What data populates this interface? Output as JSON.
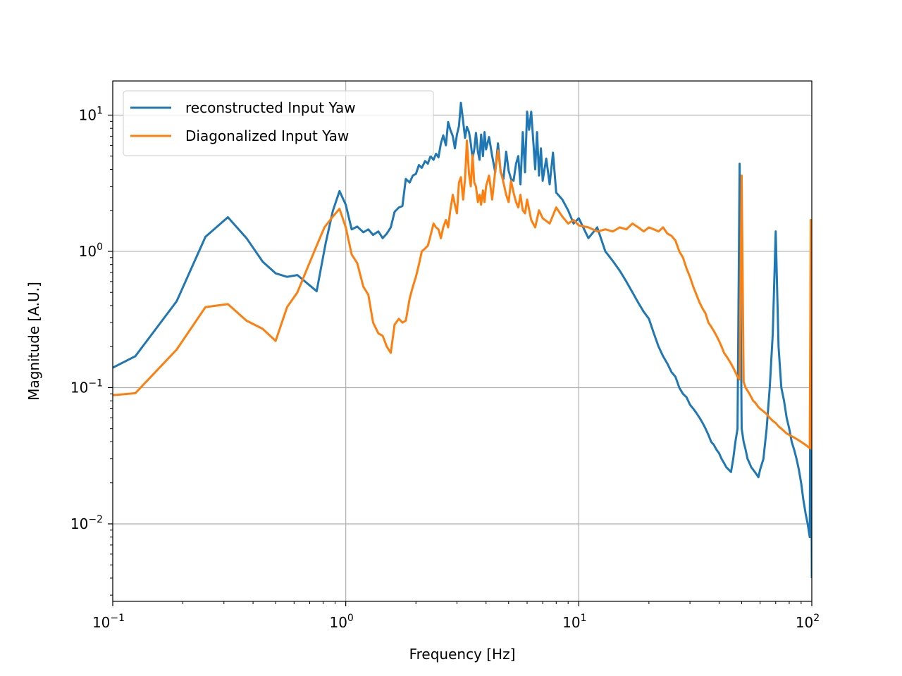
{
  "chart_data": {
    "type": "line",
    "xscale": "log",
    "yscale": "log",
    "xlim": [
      0.1,
      100
    ],
    "ylim": [
      0.0027,
      17.8
    ],
    "xlabel": "Frequency [Hz]",
    "ylabel": "Magnitude [A.U.]",
    "grid": true,
    "legend_position": "top-left",
    "x_ticks": [
      {
        "value": 0.1,
        "base": "10",
        "exp": "−1"
      },
      {
        "value": 1,
        "base": "10",
        "exp": "0"
      },
      {
        "value": 10,
        "base": "10",
        "exp": "1"
      },
      {
        "value": 100,
        "base": "10",
        "exp": "2"
      }
    ],
    "y_ticks": [
      {
        "value": 0.01,
        "base": "10",
        "exp": "−2"
      },
      {
        "value": 0.1,
        "base": "10",
        "exp": "−1"
      },
      {
        "value": 1,
        "base": "10",
        "exp": "0"
      },
      {
        "value": 10,
        "base": "10",
        "exp": "1"
      }
    ],
    "series": [
      {
        "name": "reconstructed Input Yaw",
        "color": "#1f77b4",
        "x": [
          0.1,
          0.125,
          0.188,
          0.25,
          0.312,
          0.375,
          0.44,
          0.5,
          0.56,
          0.62,
          0.75,
          0.82,
          0.88,
          0.94,
          1.0,
          1.06,
          1.12,
          1.19,
          1.25,
          1.31,
          1.38,
          1.44,
          1.5,
          1.56,
          1.62,
          1.69,
          1.75,
          1.81,
          1.88,
          1.94,
          2.0,
          2.06,
          2.12,
          2.19,
          2.25,
          2.31,
          2.38,
          2.44,
          2.5,
          2.56,
          2.62,
          2.69,
          2.75,
          2.81,
          2.88,
          2.94,
          3.0,
          3.06,
          3.12,
          3.19,
          3.25,
          3.31,
          3.38,
          3.44,
          3.5,
          3.56,
          3.62,
          3.69,
          3.75,
          3.81,
          3.88,
          3.94,
          4.0,
          4.12,
          4.25,
          4.38,
          4.5,
          4.62,
          4.75,
          4.88,
          5.0,
          5.12,
          5.25,
          5.38,
          5.5,
          5.62,
          5.75,
          5.88,
          6.0,
          6.12,
          6.25,
          6.38,
          6.5,
          6.62,
          6.75,
          6.88,
          7.0,
          7.25,
          7.5,
          7.75,
          8.0,
          8.5,
          9.0,
          9.5,
          10.0,
          11.0,
          12.0,
          13.0,
          14.0,
          15.0,
          16.0,
          17.0,
          18.0,
          19.0,
          20.0,
          21.0,
          22.0,
          23.0,
          24.0,
          25.0,
          26.0,
          27.0,
          28.0,
          29.0,
          30.0,
          31.0,
          32.0,
          33.0,
          34.0,
          35.0,
          36.0,
          37.0,
          38.0,
          39.0,
          40.0,
          41.0,
          42.0,
          43.0,
          44.0,
          45.0,
          46.0,
          47.0,
          48.0,
          49.0,
          50.0,
          51.0,
          52.0,
          53.0,
          54.0,
          55.0,
          56.0,
          57.0,
          58.0,
          59.0,
          60.0,
          62.0,
          64.0,
          66.0,
          68.0,
          70.0,
          72.0,
          74.0,
          76.0,
          78.0,
          80.0,
          82.0,
          84.0,
          86.0,
          88.0,
          90.0,
          92.0,
          94.0,
          96.0,
          98.0,
          99.0,
          100.0
        ],
        "values": [
          0.14,
          0.17,
          0.43,
          1.28,
          1.78,
          1.25,
          0.84,
          0.69,
          0.65,
          0.67,
          0.51,
          1.15,
          1.98,
          2.77,
          2.2,
          1.45,
          1.52,
          1.38,
          1.45,
          1.32,
          1.4,
          1.25,
          1.35,
          1.5,
          1.95,
          2.1,
          2.15,
          3.4,
          3.2,
          3.6,
          3.7,
          4.3,
          4.1,
          4.6,
          4.4,
          5.0,
          4.7,
          5.2,
          4.9,
          6.2,
          7.1,
          6.0,
          8.9,
          7.8,
          7.0,
          5.7,
          7.2,
          8.3,
          12.3,
          9.0,
          6.8,
          8.2,
          7.5,
          6.2,
          4.8,
          5.6,
          7.4,
          5.4,
          4.7,
          7.2,
          5.0,
          7.5,
          5.6,
          6.9,
          5.0,
          3.8,
          6.2,
          3.8,
          3.4,
          5.4,
          3.9,
          3.4,
          3.3,
          4.4,
          5.0,
          3.1,
          7.5,
          3.8,
          10.6,
          7.8,
          10.6,
          6.4,
          4.0,
          7.5,
          3.6,
          5.7,
          3.3,
          4.8,
          3.1,
          5.3,
          2.7,
          2.4,
          2.0,
          1.6,
          1.75,
          1.25,
          1.5,
          1.0,
          0.85,
          0.72,
          0.6,
          0.5,
          0.42,
          0.36,
          0.32,
          0.25,
          0.2,
          0.17,
          0.15,
          0.13,
          0.12,
          0.1,
          0.09,
          0.085,
          0.075,
          0.07,
          0.065,
          0.06,
          0.055,
          0.05,
          0.045,
          0.04,
          0.038,
          0.035,
          0.033,
          0.03,
          0.028,
          0.026,
          0.025,
          0.024,
          0.03,
          0.04,
          0.05,
          4.4,
          0.05,
          0.04,
          0.035,
          0.03,
          0.028,
          0.026,
          0.025,
          0.024,
          0.023,
          0.022,
          0.025,
          0.03,
          0.05,
          0.1,
          0.25,
          1.4,
          0.2,
          0.1,
          0.08,
          0.06,
          0.05,
          0.04,
          0.035,
          0.03,
          0.025,
          0.02,
          0.015,
          0.012,
          0.01,
          0.008,
          1.05,
          0.004
        ]
      },
      {
        "name": "Diagonalized Input Yaw",
        "color": "#ff7f0e",
        "x": [
          0.1,
          0.125,
          0.188,
          0.25,
          0.312,
          0.375,
          0.44,
          0.5,
          0.56,
          0.62,
          0.69,
          0.75,
          0.81,
          0.88,
          0.94,
          1.0,
          1.06,
          1.12,
          1.19,
          1.25,
          1.31,
          1.38,
          1.44,
          1.5,
          1.56,
          1.62,
          1.69,
          1.75,
          1.81,
          1.88,
          1.94,
          2.0,
          2.06,
          2.12,
          2.19,
          2.25,
          2.31,
          2.38,
          2.44,
          2.5,
          2.56,
          2.62,
          2.69,
          2.75,
          2.81,
          2.88,
          2.94,
          3.0,
          3.06,
          3.12,
          3.19,
          3.25,
          3.31,
          3.38,
          3.44,
          3.5,
          3.56,
          3.62,
          3.69,
          3.75,
          3.81,
          3.88,
          3.94,
          4.0,
          4.12,
          4.25,
          4.38,
          4.5,
          4.62,
          4.75,
          4.88,
          5.0,
          5.12,
          5.25,
          5.38,
          5.5,
          5.62,
          5.75,
          5.88,
          6.0,
          6.25,
          6.5,
          6.75,
          7.0,
          7.5,
          8.0,
          8.5,
          9.0,
          9.5,
          10.0,
          11.0,
          12.0,
          13.0,
          14.0,
          15.0,
          16.0,
          17.0,
          18.0,
          19.0,
          20.0,
          21.0,
          22.0,
          23.0,
          24.0,
          25.0,
          26.0,
          27.0,
          28.0,
          29.0,
          30.0,
          31.0,
          32.0,
          33.0,
          34.0,
          35.0,
          36.0,
          37.0,
          38.0,
          39.0,
          40.0,
          41.0,
          42.0,
          43.0,
          44.0,
          45.0,
          46.0,
          47.0,
          48.0,
          49.0,
          50.0,
          51.0,
          52.0,
          53.0,
          54.0,
          55.0,
          56.0,
          57.0,
          58.0,
          59.0,
          60.0,
          62.0,
          64.0,
          66.0,
          68.0,
          70.0,
          72.0,
          74.0,
          76.0,
          78.0,
          80.0,
          82.0,
          84.0,
          86.0,
          88.0,
          90.0,
          92.0,
          94.0,
          96.0,
          98.0,
          99.0,
          100.0
        ],
        "values": [
          0.088,
          0.091,
          0.19,
          0.39,
          0.41,
          0.31,
          0.27,
          0.22,
          0.39,
          0.5,
          0.78,
          1.1,
          1.5,
          1.8,
          2.05,
          1.5,
          0.95,
          0.82,
          0.55,
          0.48,
          0.3,
          0.25,
          0.24,
          0.2,
          0.18,
          0.29,
          0.32,
          0.3,
          0.31,
          0.45,
          0.55,
          0.65,
          0.8,
          1.0,
          1.05,
          1.1,
          1.3,
          1.6,
          1.5,
          1.45,
          1.25,
          1.5,
          1.7,
          1.5,
          2.0,
          2.6,
          2.2,
          1.9,
          3.2,
          3.5,
          2.4,
          3.4,
          6.5,
          3.7,
          3.0,
          5.1,
          3.2,
          3.0,
          2.3,
          2.6,
          2.2,
          2.8,
          2.3,
          3.0,
          3.6,
          2.4,
          3.9,
          5.5,
          3.9,
          3.2,
          2.6,
          2.3,
          3.3,
          2.7,
          2.3,
          2.1,
          2.6,
          2.0,
          1.9,
          2.4,
          1.7,
          1.5,
          2.0,
          1.75,
          1.6,
          2.1,
          1.8,
          1.6,
          1.7,
          1.55,
          1.5,
          1.4,
          1.45,
          1.4,
          1.5,
          1.45,
          1.6,
          1.5,
          1.4,
          1.5,
          1.45,
          1.4,
          1.5,
          1.35,
          1.3,
          1.2,
          1.0,
          0.9,
          0.75,
          0.65,
          0.55,
          0.48,
          0.42,
          0.38,
          0.35,
          0.3,
          0.28,
          0.26,
          0.24,
          0.22,
          0.2,
          0.18,
          0.17,
          0.16,
          0.15,
          0.14,
          0.13,
          0.12,
          0.115,
          3.6,
          0.11,
          0.1,
          0.095,
          0.09,
          0.085,
          0.08,
          0.078,
          0.075,
          0.072,
          0.07,
          0.067,
          0.064,
          0.06,
          0.057,
          0.055,
          0.052,
          0.05,
          0.048,
          0.046,
          0.045,
          0.044,
          0.043,
          0.042,
          0.041,
          0.04,
          0.039,
          0.038,
          0.037,
          0.036,
          1.7,
          0.035
        ]
      }
    ]
  }
}
